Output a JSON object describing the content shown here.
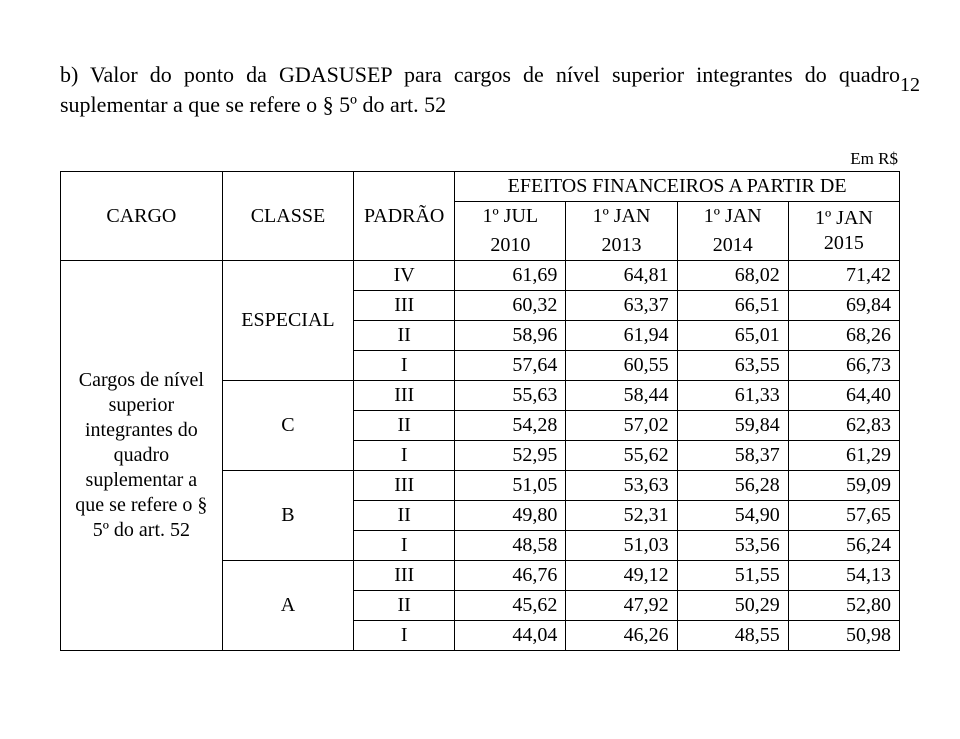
{
  "pageNumber": "12",
  "paragraph": "b) Valor do ponto da GDASUSEP para cargos de nível superior integrantes do quadro suplementar a que se refere o § 5º do art. 52",
  "unitLabel": "Em R$",
  "table": {
    "header": {
      "cargo": "CARGO",
      "classe": "CLASSE",
      "padrao": "PADRÃO",
      "efeitos": "EFEITOS FINANCEIROS A PARTIR DE",
      "colsTop": [
        "1º JUL",
        "1º JAN",
        "1º JAN"
      ],
      "colsBottom": [
        "2010",
        "2013",
        "2014"
      ],
      "col4": "1º JAN 2015"
    },
    "cargoCell": "Cargos de nível superior integrantes do quadro suplementar a que se refere o § 5º do art. 52",
    "blocks": [
      {
        "classe": "ESPECIAL",
        "rows": [
          {
            "padrao": "IV",
            "v1": "61,69",
            "v2": "64,81",
            "v3": "68,02",
            "v4": "71,42"
          },
          {
            "padrao": "III",
            "v1": "60,32",
            "v2": "63,37",
            "v3": "66,51",
            "v4": "69,84"
          },
          {
            "padrao": "II",
            "v1": "58,96",
            "v2": "61,94",
            "v3": "65,01",
            "v4": "68,26"
          },
          {
            "padrao": "I",
            "v1": "57,64",
            "v2": "60,55",
            "v3": "63,55",
            "v4": "66,73"
          }
        ]
      },
      {
        "classe": "C",
        "rows": [
          {
            "padrao": "III",
            "v1": "55,63",
            "v2": "58,44",
            "v3": "61,33",
            "v4": "64,40"
          },
          {
            "padrao": "II",
            "v1": "54,28",
            "v2": "57,02",
            "v3": "59,84",
            "v4": "62,83"
          },
          {
            "padrao": "I",
            "v1": "52,95",
            "v2": "55,62",
            "v3": "58,37",
            "v4": "61,29"
          }
        ]
      },
      {
        "classe": "B",
        "rows": [
          {
            "padrao": "III",
            "v1": "51,05",
            "v2": "53,63",
            "v3": "56,28",
            "v4": "59,09"
          },
          {
            "padrao": "II",
            "v1": "49,80",
            "v2": "52,31",
            "v3": "54,90",
            "v4": "57,65"
          },
          {
            "padrao": "I",
            "v1": "48,58",
            "v2": "51,03",
            "v3": "53,56",
            "v4": "56,24"
          }
        ]
      },
      {
        "classe": "A",
        "rows": [
          {
            "padrao": "III",
            "v1": "46,76",
            "v2": "49,12",
            "v3": "51,55",
            "v4": "54,13"
          },
          {
            "padrao": "II",
            "v1": "45,62",
            "v2": "47,92",
            "v3": "50,29",
            "v4": "52,80"
          },
          {
            "padrao": "I",
            "v1": "44,04",
            "v2": "46,26",
            "v3": "48,55",
            "v4": "50,98"
          }
        ]
      }
    ]
  }
}
